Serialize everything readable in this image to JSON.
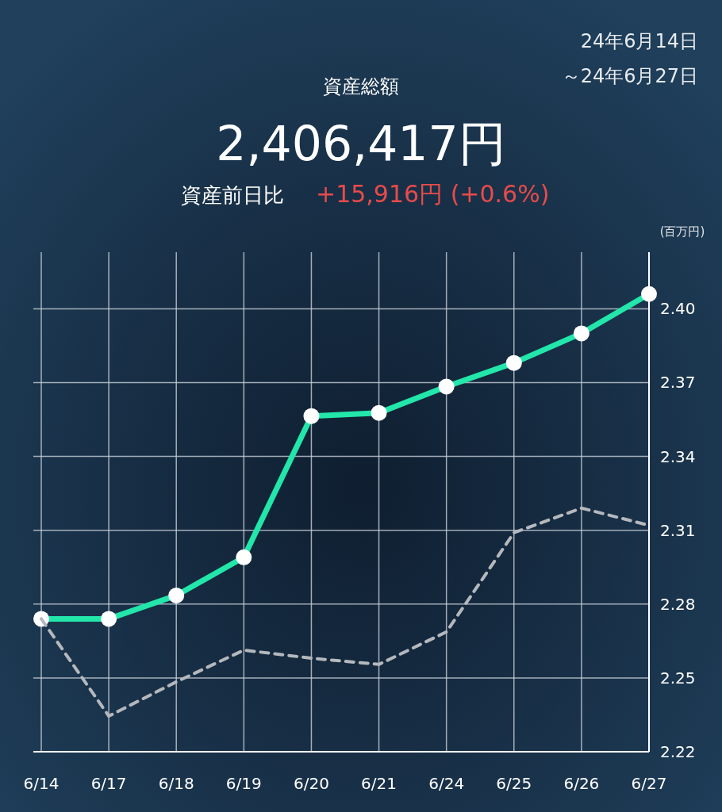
{
  "chart_data": {
    "type": "line",
    "title": "資産総額",
    "subtitle": "2,406,417円",
    "ylabel": "(百万円)",
    "annotations": [
      "24年6月14日",
      "～24年6月27日",
      "資産前日比",
      "+15,916円 (+0.6%)"
    ],
    "categories": [
      "6/14",
      "6/17",
      "6/18",
      "6/19",
      "6/20",
      "6/21",
      "6/24",
      "6/25",
      "6/26",
      "6/27"
    ],
    "series": [
      {
        "color": "#22e6aa",
        "marker": "circle",
        "line_style": "solid",
        "values": [
          2.274,
          2.274,
          2.2835,
          2.299,
          2.3564,
          2.3577,
          2.3684,
          2.378,
          2.39,
          2.406
        ]
      },
      {
        "color": "#b4b8bd",
        "marker": "none",
        "line_style": "dashed",
        "values": [
          2.274,
          2.2345,
          2.2484,
          2.2613,
          2.258,
          2.2555,
          2.2687,
          2.309,
          2.319,
          2.312
        ]
      }
    ],
    "ylim": [
      2.22,
      2.423
    ],
    "yticks": [
      2.22,
      2.25,
      2.28,
      2.31,
      2.34,
      2.37,
      {
        "value": 2.4,
        "label": "2.40"
      }
    ],
    "grid": true
  }
}
